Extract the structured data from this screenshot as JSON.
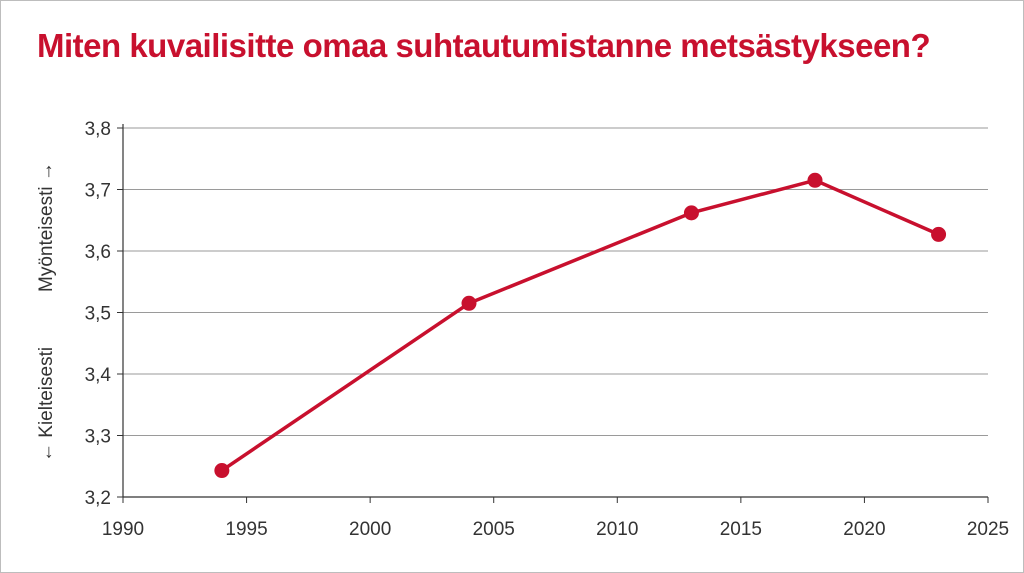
{
  "chart_data": {
    "type": "line",
    "title": "Miten kuvailisitte omaa suhtautumistanne metsästykseen?",
    "ylabel_low": "← Kielteisesti",
    "ylabel_high": "Myönteisesti →",
    "xlim": [
      1990,
      2025
    ],
    "ylim": [
      3.2,
      3.8
    ],
    "x_ticks": [
      1990,
      1995,
      2000,
      2005,
      2010,
      2015,
      2020,
      2025
    ],
    "y_ticks": [
      3.2,
      3.3,
      3.4,
      3.5,
      3.6,
      3.7,
      3.8
    ],
    "x_tick_labels": [
      "1990",
      "1995",
      "2000",
      "2005",
      "2010",
      "2015",
      "2020",
      "2025"
    ],
    "y_tick_labels": [
      "3,2",
      "3,3",
      "3,4",
      "3,5",
      "3,6",
      "3,7",
      "3,8"
    ],
    "grid": true,
    "series": [
      {
        "color": "#c8102e",
        "x": [
          1994,
          2004,
          2013,
          2018,
          2023
        ],
        "y": [
          3.243,
          3.515,
          3.662,
          3.715,
          3.627
        ]
      }
    ]
  }
}
